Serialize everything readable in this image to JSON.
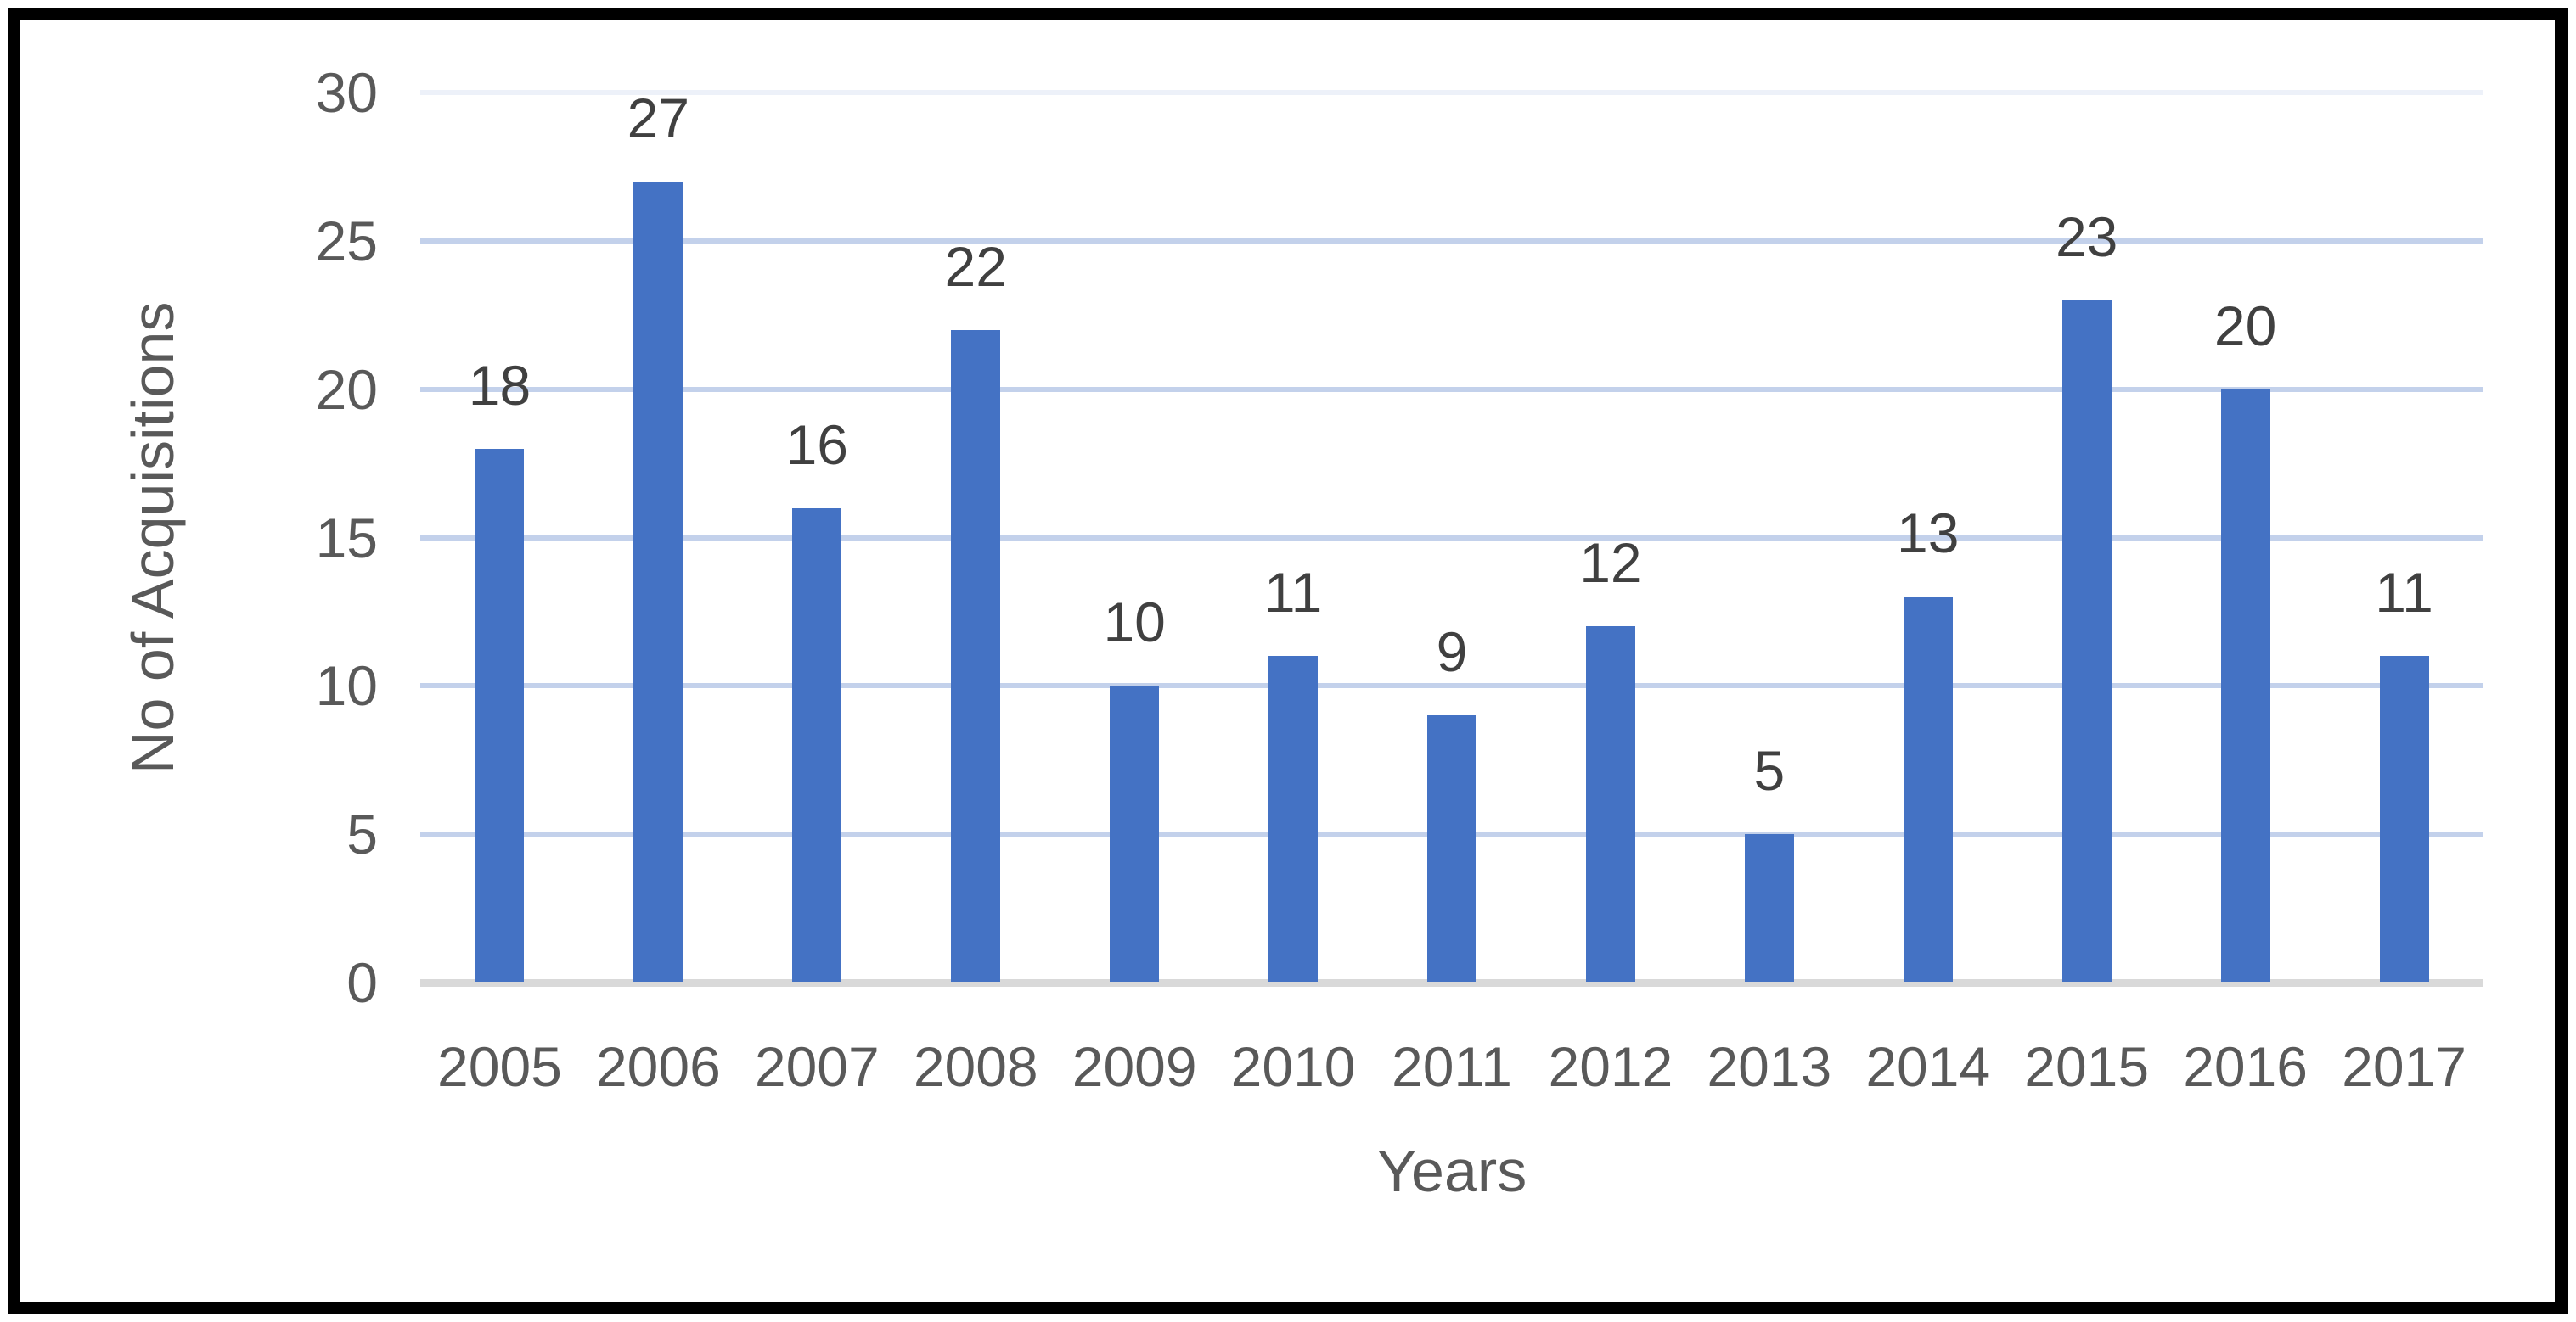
{
  "chart_data": {
    "type": "bar",
    "title": "",
    "categories": [
      "2005",
      "2006",
      "2007",
      "2008",
      "2009",
      "2010",
      "2011",
      "2012",
      "2013",
      "2014",
      "2015",
      "2016",
      "2017"
    ],
    "values": [
      18,
      27,
      16,
      22,
      10,
      11,
      9,
      12,
      5,
      13,
      23,
      20,
      11
    ],
    "xlabel": "Years",
    "ylabel": "No of Acquisitions",
    "ylim": [
      0,
      30
    ],
    "ytick_interval": 5,
    "yticks": [
      "0",
      "5",
      "10",
      "15",
      "20",
      "25",
      "30"
    ],
    "grid": true,
    "legend": false,
    "data_labels": true,
    "colors": {
      "bar": "#4472C4",
      "gridline": "#C3D1EB",
      "gridline_top": "#EDF1F9",
      "axis_line": "#D9D9D9",
      "tick_text": "#595959",
      "data_label_text": "#404040",
      "axis_title_text": "#595959",
      "figure_border": "#000000",
      "background": "#FFFFFF"
    }
  }
}
